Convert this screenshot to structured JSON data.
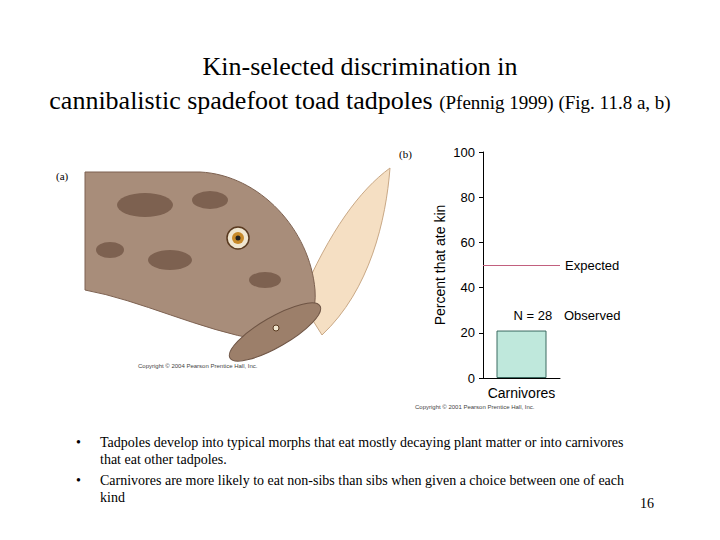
{
  "slide": {
    "title": "Kin-selected discrimination in cannibalistic spadefoot toad tadpoles",
    "title_note": "(Pfennig 1999) (Fig. 11.8 a, b)",
    "bullets": [
      "Tadpoles develop into typical morphs that eat mostly decaying plant matter or into carnivores that eat other tadpoles.",
      "Carnivores are more likely to eat non-sibs than sibs when given a choice between one of each kind"
    ],
    "page_number": "16",
    "figure_a": {
      "panel": "(a)",
      "copyright": "Copyright © 2004 Pearson Prentice Hall, Inc."
    }
  },
  "chart_data": {
    "type": "bar",
    "panel": "(b)",
    "ylabel": "Percent that ate kin",
    "categories": [
      "Carnivores"
    ],
    "values": [
      21
    ],
    "color": "#bfe8dc",
    "ylim": [
      0,
      100
    ],
    "yticks": [
      0,
      20,
      40,
      60,
      80,
      100
    ],
    "reference_line": {
      "value": 50,
      "label": "Expected",
      "color": "#c2607e"
    },
    "annotations": [
      "N = 28",
      "Observed"
    ],
    "copyright": "Copyright © 2001 Pearson Prentice Hall, Inc."
  }
}
